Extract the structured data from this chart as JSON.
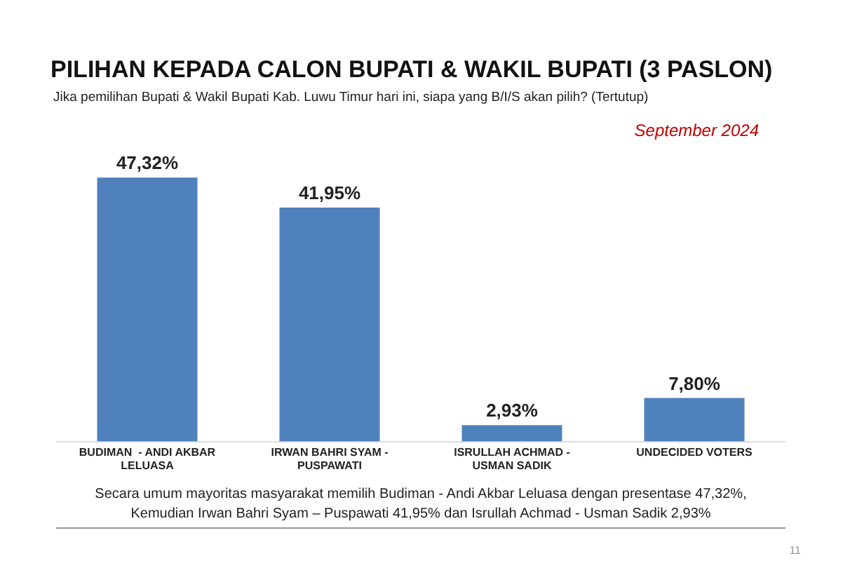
{
  "chart_data": {
    "type": "bar",
    "title": "PILIHAN KEPADA CALON BUPATI & WAKIL BUPATI (3 PASLON)",
    "subtitle": "Jika pemilihan Bupati & Wakil Bupati Kab. Luwu Timur hari ini, siapa yang B/I/S akan pilih? (Tertutup)",
    "categories": [
      "BUDIMAN  - ANDI AKBAR LELUASA",
      "IRWAN BAHRI SYAM - PUSPAWATI",
      "ISRULLAH ACHMAD - USMAN SADIK",
      "UNDECIDED VOTERS"
    ],
    "values": [
      47.32,
      41.95,
      2.93,
      7.8
    ],
    "color": "#4f81bd",
    "value_labels": [
      "47,32%",
      "41,95%",
      "2,93%",
      "7,80%"
    ],
    "annotations": [
      "September 2024",
      "Secara umum mayoritas masyarakat memilih Budiman - Andi Akbar Leluasa dengan presentase 47,32%,",
      "Kemudian  Irwan Bahri Syam – Puspawati 41,95% dan Isrullah Achmad  -  Usman Sadik  2,93%",
      "11"
    ],
    "grid": false,
    "legend": false
  }
}
